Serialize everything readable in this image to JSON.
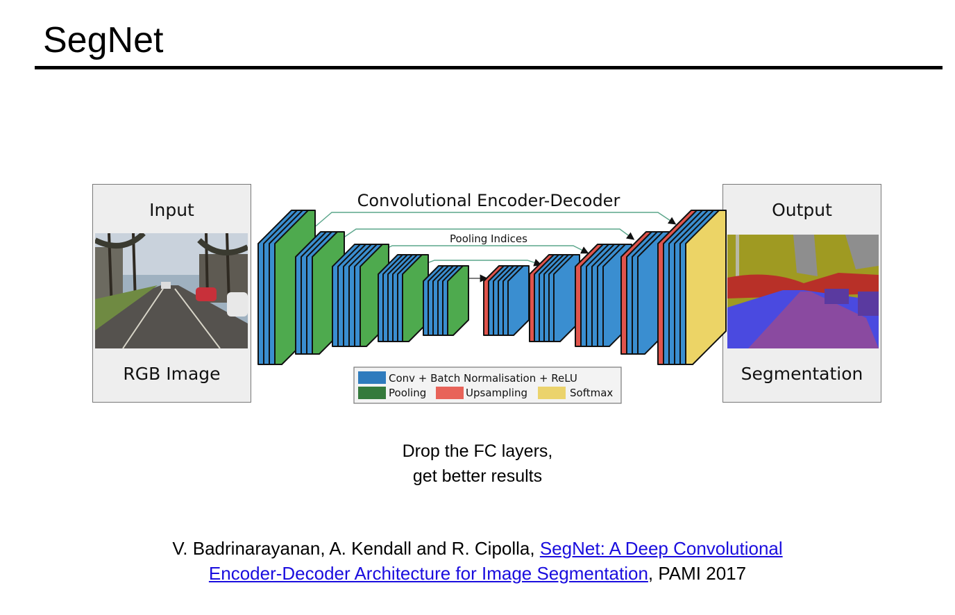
{
  "title": "SegNet",
  "diagram": {
    "heading": "Convolutional Encoder-Decoder",
    "pooling_indices": "Pooling Indices",
    "input_panel": {
      "top": "Input",
      "bottom": "RGB Image"
    },
    "output_panel": {
      "top": "Output",
      "bottom": "Segmentation"
    },
    "legend": {
      "conv": "Conv + Batch Normalisation + ReLU",
      "pooling": "Pooling",
      "upsampling": "Upsampling",
      "softmax": "Softmax"
    },
    "colors": {
      "conv": "#3a8ed0",
      "pooling": "#4eaa4e",
      "upsampling": "#e0544c",
      "softmax": "#ecd466",
      "arrow": "#5aa58a",
      "legend_conv": "#2f7bbd",
      "legend_pooling": "#357a3c",
      "legend_upsampling": "#e86359",
      "legend_softmax": "#ebd36c"
    }
  },
  "caption": {
    "line1": "Drop the FC layers,",
    "line2": "get better results"
  },
  "reference": {
    "authors": "V. Badrinarayanan, A. Kendall and R. Cipolla, ",
    "link_line1": "SegNet: A Deep Convolutional ",
    "link_line2": "Encoder-Decoder Architecture for Image Segmentation",
    "venue": ", PAMI 2017"
  }
}
